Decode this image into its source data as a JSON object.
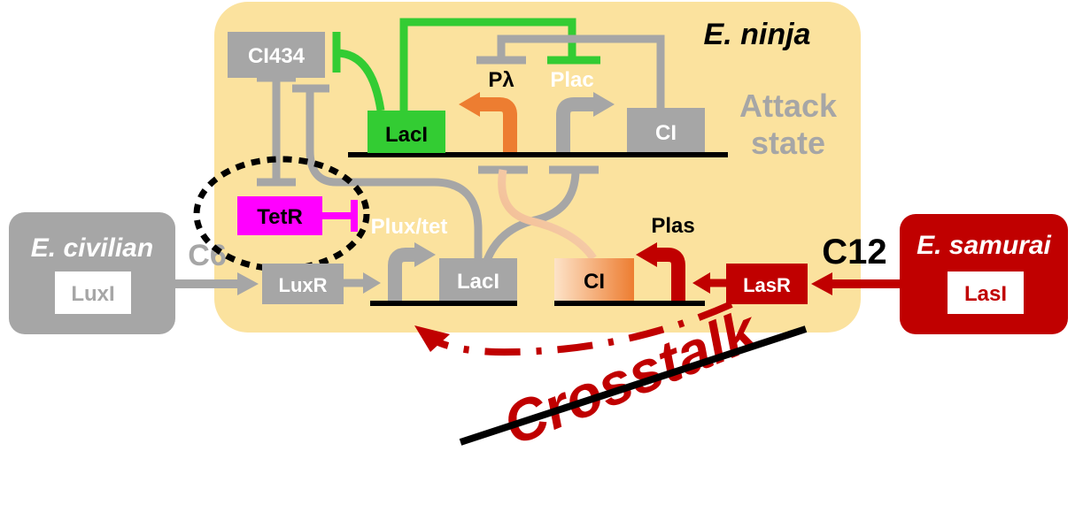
{
  "cells": {
    "ninja": "E. ninja",
    "civilian": "E. civilian",
    "samurai": "E. samurai"
  },
  "state_label": [
    "Attack",
    "state"
  ],
  "genes": {
    "ci434": "CI434",
    "laci_top": "LacI",
    "ci_top": "CI",
    "tetr": "TetR",
    "luxr": "LuxR",
    "laci_bottom": "LacI",
    "ci_bottom": "CI",
    "lasr": "LasR",
    "luxi": "LuxI",
    "lasi": "LasI"
  },
  "promoters": {
    "plambda": "Pλ",
    "plac": "Plac",
    "pluxtet": "Plux/tet",
    "plas": "Plas"
  },
  "signals": {
    "c6": "C6",
    "c12": "C12"
  },
  "crosstalk": "Crosstalk",
  "colors": {
    "ninja_bg": "#fbe29e",
    "gray": "#a6a6a6",
    "green": "#33cc33",
    "dark_green": "#2ecc2e",
    "magenta": "#ff00ff",
    "red": "#c00000",
    "orange": "#ed7d31"
  }
}
